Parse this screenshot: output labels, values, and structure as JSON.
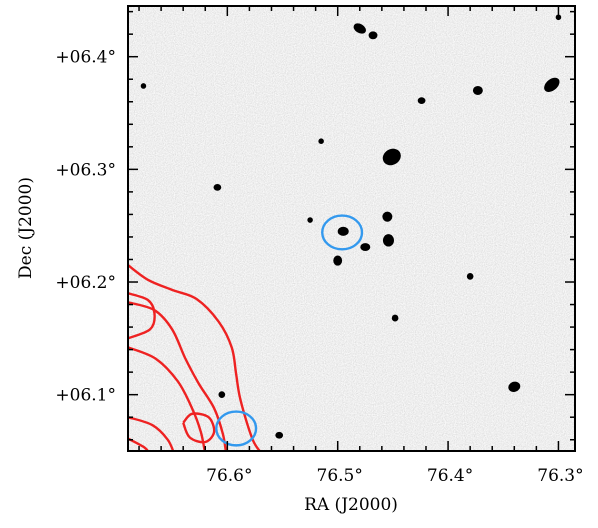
{
  "chart_data": {
    "type": "scatter",
    "title": "",
    "xlabel": "RA (J2000)",
    "ylabel": "Dec (J2000)",
    "x_ticks": [
      {
        "value": 76.6,
        "label": "76.6°"
      },
      {
        "value": 76.5,
        "label": "76.5°"
      },
      {
        "value": 76.4,
        "label": "76.4°"
      },
      {
        "value": 76.3,
        "label": "76.3°"
      }
    ],
    "y_ticks": [
      {
        "value": 6.1,
        "label": "+06.1°"
      },
      {
        "value": 6.2,
        "label": "+06.2°"
      },
      {
        "value": 6.3,
        "label": "+06.3°"
      },
      {
        "value": 6.4,
        "label": "+06.4°"
      }
    ],
    "xlim": [
      76.69,
      76.285
    ],
    "ylim": [
      6.05,
      6.445
    ],
    "grid": false,
    "background": "inverted greyscale optical image (noise with dark point sources)",
    "sources": [
      {
        "ra": 76.48,
        "dec": 6.425,
        "rx": 0.006,
        "ry": 0.004,
        "tilt": 30
      },
      {
        "ra": 76.468,
        "dec": 6.419,
        "rx": 0.004,
        "ry": 0.0035,
        "tilt": 0
      },
      {
        "ra": 76.306,
        "dec": 6.375,
        "rx": 0.008,
        "ry": 0.005,
        "tilt": -40
      },
      {
        "ra": 76.373,
        "dec": 6.37,
        "rx": 0.0045,
        "ry": 0.004,
        "tilt": 0
      },
      {
        "ra": 76.424,
        "dec": 6.361,
        "rx": 0.0035,
        "ry": 0.003,
        "tilt": 0
      },
      {
        "ra": 76.451,
        "dec": 6.311,
        "rx": 0.0085,
        "ry": 0.007,
        "tilt": -30
      },
      {
        "ra": 76.609,
        "dec": 6.284,
        "rx": 0.0035,
        "ry": 0.003,
        "tilt": 0
      },
      {
        "ra": 76.455,
        "dec": 6.258,
        "rx": 0.0045,
        "ry": 0.0045,
        "tilt": 0
      },
      {
        "ra": 76.495,
        "dec": 6.245,
        "rx": 0.005,
        "ry": 0.004,
        "tilt": 0
      },
      {
        "ra": 76.454,
        "dec": 6.237,
        "rx": 0.005,
        "ry": 0.0055,
        "tilt": 0
      },
      {
        "ra": 76.475,
        "dec": 6.231,
        "rx": 0.0045,
        "ry": 0.0035,
        "tilt": 0
      },
      {
        "ra": 76.5,
        "dec": 6.219,
        "rx": 0.004,
        "ry": 0.0045,
        "tilt": 0
      },
      {
        "ra": 76.448,
        "dec": 6.168,
        "rx": 0.003,
        "ry": 0.003,
        "tilt": 0
      },
      {
        "ra": 76.34,
        "dec": 6.107,
        "rx": 0.0055,
        "ry": 0.0045,
        "tilt": -20
      },
      {
        "ra": 76.605,
        "dec": 6.1,
        "rx": 0.003,
        "ry": 0.003,
        "tilt": 0
      },
      {
        "ra": 76.553,
        "dec": 6.064,
        "rx": 0.0035,
        "ry": 0.003,
        "tilt": 0
      },
      {
        "ra": 76.676,
        "dec": 6.374,
        "rx": 0.0025,
        "ry": 0.0025,
        "tilt": 0
      },
      {
        "ra": 76.515,
        "dec": 6.325,
        "rx": 0.0025,
        "ry": 0.0025,
        "tilt": 0
      },
      {
        "ra": 76.525,
        "dec": 6.255,
        "rx": 0.0025,
        "ry": 0.0025,
        "tilt": 0
      },
      {
        "ra": 76.38,
        "dec": 6.205,
        "rx": 0.003,
        "ry": 0.003,
        "tilt": 0
      },
      {
        "ra": 76.3,
        "dec": 6.435,
        "rx": 0.0025,
        "ry": 0.0025,
        "tilt": 0
      }
    ],
    "annotations": [
      {
        "shape": "ellipse",
        "color": "#3399ee",
        "ra": 76.496,
        "dec": 6.244,
        "rx": 0.018,
        "ry": 0.015
      },
      {
        "shape": "ellipse",
        "color": "#3399ee",
        "ra": 76.592,
        "dec": 6.07,
        "rx": 0.018,
        "ry": 0.015
      }
    ],
    "contour_color": "#ee2222",
    "contours": [
      [
        [
          76.69,
          6.215
        ],
        [
          76.672,
          6.202
        ],
        [
          76.65,
          6.193
        ],
        [
          76.628,
          6.185
        ],
        [
          76.608,
          6.165
        ],
        [
          76.596,
          6.142
        ],
        [
          76.592,
          6.118
        ],
        [
          76.588,
          6.095
        ],
        [
          76.577,
          6.06
        ],
        [
          76.568,
          6.047
        ]
      ],
      [
        [
          76.69,
          6.182
        ],
        [
          76.666,
          6.175
        ],
        [
          76.65,
          6.158
        ],
        [
          76.638,
          6.132
        ],
        [
          76.626,
          6.11
        ],
        [
          76.612,
          6.088
        ],
        [
          76.604,
          6.065
        ],
        [
          76.601,
          6.047
        ]
      ],
      [
        [
          76.69,
          6.142
        ],
        [
          76.665,
          6.132
        ],
        [
          76.645,
          6.112
        ],
        [
          76.632,
          6.088
        ],
        [
          76.624,
          6.067
        ],
        [
          76.62,
          6.047
        ]
      ],
      [
        [
          76.69,
          6.08
        ],
        [
          76.668,
          6.073
        ],
        [
          76.654,
          6.06
        ],
        [
          76.648,
          6.047
        ]
      ],
      [
        [
          76.69,
          6.061
        ],
        [
          76.675,
          6.053
        ],
        [
          76.67,
          6.047
        ]
      ],
      [
        [
          76.69,
          6.19
        ],
        [
          76.672,
          6.184
        ],
        [
          76.666,
          6.172
        ],
        [
          76.67,
          6.158
        ],
        [
          76.69,
          6.15
        ]
      ],
      [
        [
          76.64,
          6.075
        ],
        [
          76.634,
          6.062
        ],
        [
          76.62,
          6.058
        ],
        [
          76.612,
          6.067
        ],
        [
          76.617,
          6.08
        ],
        [
          76.632,
          6.083
        ],
        [
          76.64,
          6.075
        ]
      ]
    ]
  }
}
